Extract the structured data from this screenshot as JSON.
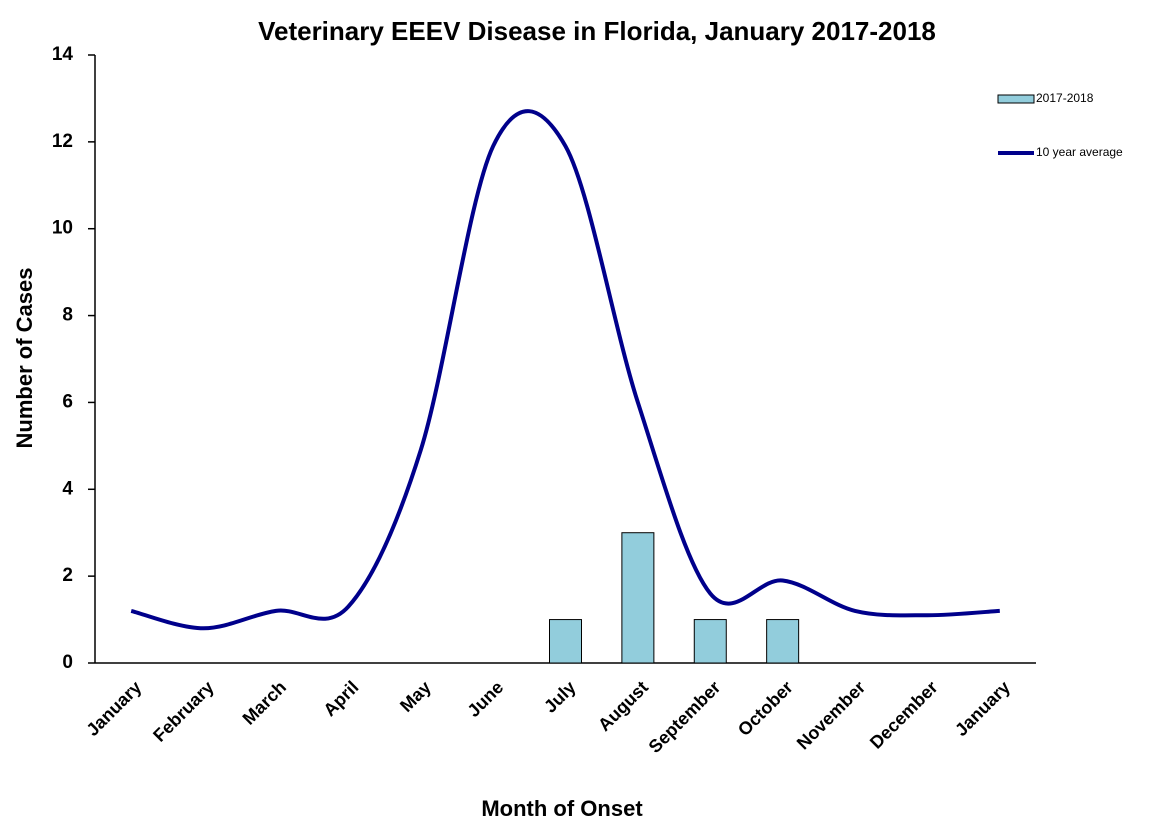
{
  "chart_data": {
    "type": "bar-line",
    "title": "Veterinary EEEV Disease in Florida, January 2017-2018",
    "x_label": "Month of Onset",
    "y_label": "Number of Cases",
    "categories": [
      "January",
      "February",
      "March",
      "April",
      "May",
      "June",
      "July",
      "August",
      "September",
      "October",
      "November",
      "December",
      "January"
    ],
    "series": [
      {
        "name": "2017-2018",
        "kind": "bar",
        "color": "#92cddc",
        "values": [
          null,
          null,
          null,
          null,
          null,
          null,
          1,
          3,
          1,
          1,
          null,
          null,
          null
        ]
      },
      {
        "name": "10 year average",
        "kind": "line",
        "color": "#00008b",
        "values": [
          1.2,
          0.8,
          1.2,
          1.3,
          4.9,
          11.9,
          11.9,
          6.0,
          1.6,
          1.9,
          1.2,
          1.1,
          1.2
        ]
      }
    ],
    "ylim": [
      0,
      14
    ],
    "yticks": [
      0,
      2,
      4,
      6,
      8,
      10,
      12,
      14
    ],
    "legend": "top-right"
  }
}
